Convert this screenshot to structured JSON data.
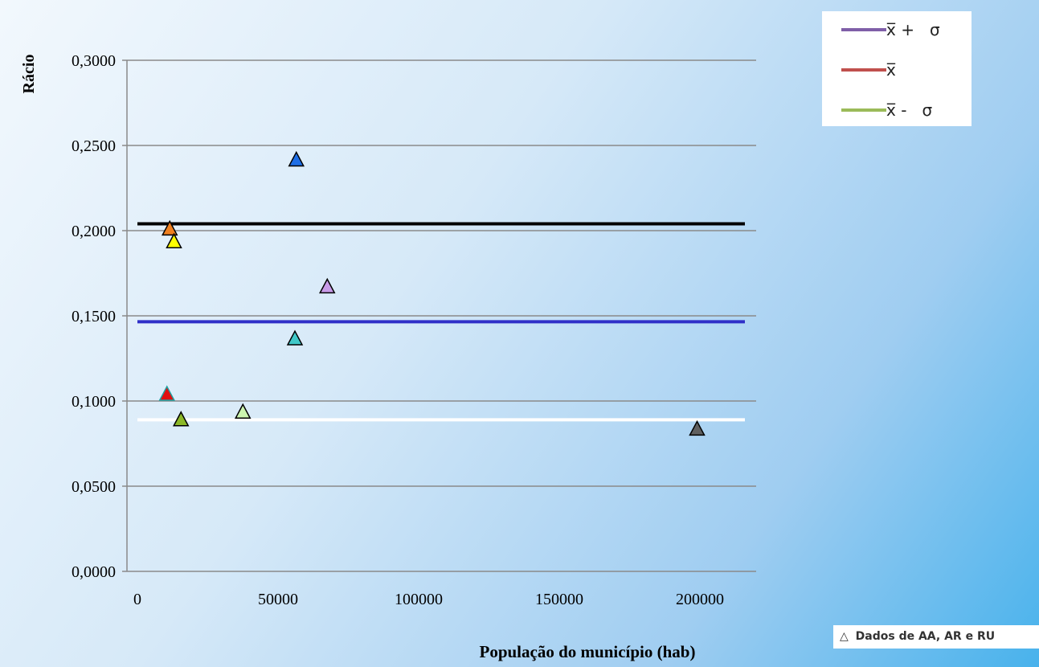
{
  "chart_data": {
    "type": "scatter",
    "title": "",
    "xlabel": "População do município (hab)",
    "ylabel": "Rácio",
    "xlim": [
      0,
      220000
    ],
    "ylim": [
      0,
      0.3
    ],
    "x_ticks": [
      0,
      50000,
      100000,
      150000,
      200000
    ],
    "x_tick_labels": [
      "0",
      "50000",
      "100000",
      "150000",
      "200000"
    ],
    "y_ticks": [
      0,
      0.05,
      0.1,
      0.15,
      0.2,
      0.25,
      0.3
    ],
    "y_tick_labels": [
      "0,0000",
      "0,0500",
      "0,1000",
      "0,1500",
      "0,2000",
      "0,2500",
      "0,3000"
    ],
    "grid": "horizontal",
    "reference_lines": [
      {
        "value": 0.204,
        "color": "#000000"
      },
      {
        "value": 0.1465,
        "color": "#3030c8"
      },
      {
        "value": 0.089,
        "color": "#ffffff"
      }
    ],
    "points": [
      {
        "x": 56500,
        "y": 0.242,
        "color": "#1e6ee6"
      },
      {
        "x": 11500,
        "y": 0.2015,
        "color": "#f08020"
      },
      {
        "x": 13000,
        "y": 0.194,
        "color": "#ffff00"
      },
      {
        "x": 67500,
        "y": 0.1675,
        "color": "#c89be8"
      },
      {
        "x": 56000,
        "y": 0.137,
        "color": "#40c8c8"
      },
      {
        "x": 10500,
        "y": 0.1045,
        "color": "#e01010",
        "stroke": "#20a0a0"
      },
      {
        "x": 15500,
        "y": 0.0895,
        "color": "#8cb828"
      },
      {
        "x": 37500,
        "y": 0.094,
        "color": "#ccf5b0"
      },
      {
        "x": 199000,
        "y": 0.084,
        "color": "#606060"
      }
    ],
    "legend_position": "top-right"
  },
  "legend": {
    "items": [
      {
        "label": "x̅ +   σ",
        "color": "#7f5fa8"
      },
      {
        "label": "x̅",
        "color": "#c0504d"
      },
      {
        "label": "x̅ -   σ",
        "color": "#9bbb59"
      }
    ]
  },
  "data_badge": {
    "icon": "triangle-outline-icon",
    "label": "Dados de AA, AR e RU"
  }
}
